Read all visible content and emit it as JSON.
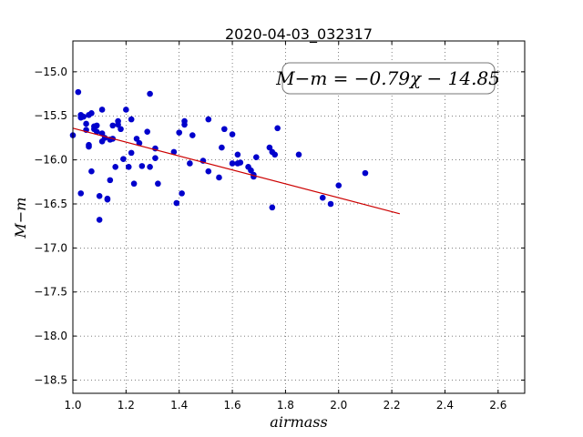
{
  "chart_data": {
    "type": "scatter",
    "title": "2020-04-03_032317",
    "xlabel": "airmass",
    "ylabel": "M−m",
    "xlim": [
      1.0,
      2.7
    ],
    "ylim": [
      -18.65,
      -14.65
    ],
    "y_inverted": true,
    "xticks": [
      1.0,
      1.2,
      1.4,
      1.6,
      1.8,
      2.0,
      2.2,
      2.4,
      2.6
    ],
    "xtick_labels": [
      "1.0",
      "1.2",
      "1.4",
      "1.6",
      "1.8",
      "2.0",
      "2.2",
      "2.4",
      "2.6"
    ],
    "yticks": [
      -15.0,
      -15.5,
      -16.0,
      -16.5,
      -17.0,
      -17.5,
      -18.0,
      -18.5
    ],
    "ytick_labels": [
      "−15.0",
      "−15.5",
      "−16.0",
      "−16.5",
      "−17.0",
      "−17.5",
      "−18.0",
      "−18.5"
    ],
    "grid": true,
    "annotation": "M−m = −0.79χ − 14.85",
    "annotation_position": "top-right",
    "colors": {
      "points": "#0000cc",
      "fit": "#cc0000"
    },
    "fit_line": {
      "slope": -0.79,
      "intercept": -14.85,
      "x_range": [
        1.0,
        2.23
      ]
    },
    "series": [
      {
        "type": "scatter",
        "points": [
          [
            1.0,
            -15.72
          ],
          [
            1.02,
            -15.23
          ],
          [
            1.03,
            -15.49
          ],
          [
            1.03,
            -15.52
          ],
          [
            1.03,
            -16.38
          ],
          [
            1.04,
            -15.51
          ],
          [
            1.05,
            -15.59
          ],
          [
            1.05,
            -15.66
          ],
          [
            1.06,
            -15.85
          ],
          [
            1.06,
            -15.83
          ],
          [
            1.06,
            -15.49
          ],
          [
            1.07,
            -15.47
          ],
          [
            1.07,
            -16.13
          ],
          [
            1.08,
            -15.62
          ],
          [
            1.08,
            -15.65
          ],
          [
            1.09,
            -15.68
          ],
          [
            1.09,
            -15.61
          ],
          [
            1.1,
            -16.68
          ],
          [
            1.1,
            -16.41
          ],
          [
            1.11,
            -15.43
          ],
          [
            1.11,
            -15.7
          ],
          [
            1.11,
            -15.79
          ],
          [
            1.12,
            -15.75
          ],
          [
            1.13,
            -16.45
          ],
          [
            1.13,
            -16.44
          ],
          [
            1.14,
            -15.77
          ],
          [
            1.14,
            -16.23
          ],
          [
            1.15,
            -15.76
          ],
          [
            1.15,
            -15.61
          ],
          [
            1.16,
            -16.08
          ],
          [
            1.17,
            -15.56
          ],
          [
            1.17,
            -15.6
          ],
          [
            1.18,
            -15.65
          ],
          [
            1.19,
            -15.99
          ],
          [
            1.2,
            -15.43
          ],
          [
            1.21,
            -16.08
          ],
          [
            1.22,
            -15.54
          ],
          [
            1.22,
            -15.92
          ],
          [
            1.23,
            -16.27
          ],
          [
            1.24,
            -15.76
          ],
          [
            1.25,
            -15.81
          ],
          [
            1.26,
            -16.07
          ],
          [
            1.28,
            -15.68
          ],
          [
            1.29,
            -15.25
          ],
          [
            1.29,
            -16.08
          ],
          [
            1.31,
            -15.98
          ],
          [
            1.31,
            -15.87
          ],
          [
            1.32,
            -16.27
          ],
          [
            1.38,
            -15.91
          ],
          [
            1.39,
            -16.49
          ],
          [
            1.4,
            -15.69
          ],
          [
            1.41,
            -16.38
          ],
          [
            1.42,
            -15.56
          ],
          [
            1.42,
            -15.6
          ],
          [
            1.44,
            -16.04
          ],
          [
            1.45,
            -15.72
          ],
          [
            1.49,
            -16.01
          ],
          [
            1.51,
            -15.54
          ],
          [
            1.51,
            -16.13
          ],
          [
            1.55,
            -16.2
          ],
          [
            1.56,
            -15.86
          ],
          [
            1.57,
            -15.65
          ],
          [
            1.6,
            -15.71
          ],
          [
            1.6,
            -16.04
          ],
          [
            1.62,
            -16.04
          ],
          [
            1.62,
            -15.94
          ],
          [
            1.63,
            -16.03
          ],
          [
            1.66,
            -16.08
          ],
          [
            1.67,
            -16.12
          ],
          [
            1.68,
            -16.17
          ],
          [
            1.68,
            -16.19
          ],
          [
            1.69,
            -15.97
          ],
          [
            1.74,
            -15.86
          ],
          [
            1.75,
            -16.54
          ],
          [
            1.75,
            -15.91
          ],
          [
            1.76,
            -15.94
          ],
          [
            1.77,
            -15.64
          ],
          [
            1.85,
            -15.94
          ],
          [
            1.94,
            -16.43
          ],
          [
            1.97,
            -16.5
          ],
          [
            2.0,
            -16.29
          ],
          [
            2.1,
            -16.15
          ]
        ]
      }
    ]
  }
}
